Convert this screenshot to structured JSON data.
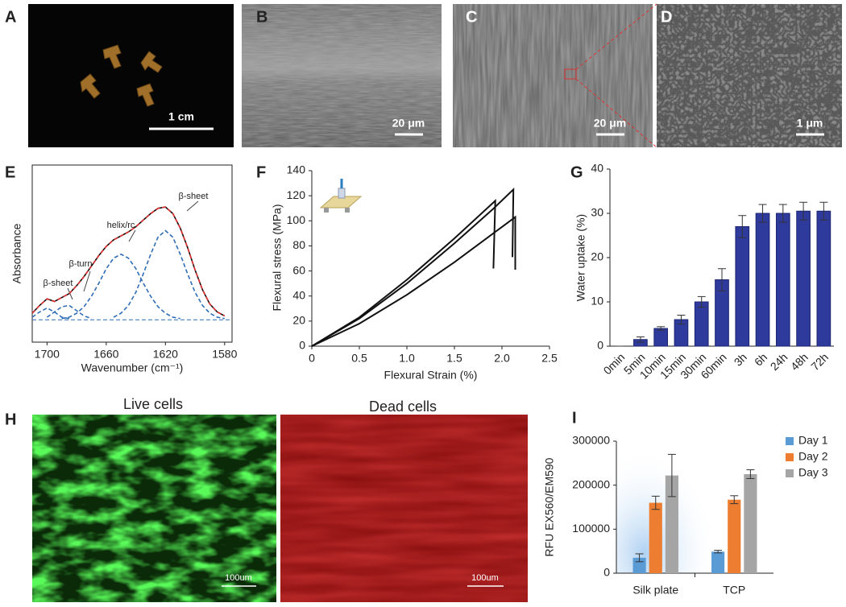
{
  "images": [
    {
      "letter": "A",
      "scale_bar": "1 cm"
    },
    {
      "letter": "B",
      "scale_bar": "20 μm"
    },
    {
      "letter": "C",
      "scale_bar": "20 μm"
    },
    {
      "letter": "D",
      "scale_bar": "1 μm"
    }
  ],
  "cell_images": {
    "letter": "H",
    "panels": [
      {
        "title": "Live cells",
        "scale_bar": "100um"
      },
      {
        "title": "Dead cells",
        "scale_bar": "100um"
      }
    ]
  },
  "chart_data": [
    {
      "type": "line",
      "panel": "E",
      "x_label": "Wavenumber (cm⁻¹)",
      "y_label": "Absorbance",
      "annotations": [
        "β-sheet",
        "β-turn",
        "helix/rc",
        "β-sheet"
      ],
      "xlim": [
        1710,
        1575
      ],
      "ylim": [
        -0.17,
        1.18
      ],
      "xticks": [
        1700,
        1660,
        1620,
        1580
      ],
      "x": [
        1710,
        1705,
        1700,
        1695,
        1690,
        1685,
        1680,
        1675,
        1670,
        1665,
        1660,
        1655,
        1650,
        1645,
        1640,
        1635,
        1630,
        1625,
        1620,
        1615,
        1610,
        1605,
        1600,
        1595,
        1590,
        1585,
        1580
      ],
      "series": [
        {
          "color": "#111111",
          "values": [
            0.05,
            0.11,
            0.16,
            0.14,
            0.17,
            0.2,
            0.26,
            0.33,
            0.41,
            0.49,
            0.56,
            0.61,
            0.64,
            0.67,
            0.71,
            0.76,
            0.81,
            0.85,
            0.86,
            0.81,
            0.7,
            0.55,
            0.38,
            0.23,
            0.12,
            0.06,
            0.03
          ]
        },
        {
          "color": "#e03030",
          "dash": true,
          "values": [
            0.05,
            0.11,
            0.16,
            0.14,
            0.17,
            0.2,
            0.26,
            0.33,
            0.41,
            0.49,
            0.56,
            0.61,
            0.64,
            0.67,
            0.71,
            0.76,
            0.81,
            0.85,
            0.86,
            0.81,
            0.7,
            0.55,
            0.38,
            0.23,
            0.12,
            0.06,
            0.03
          ]
        },
        {
          "color": "#2f6db5",
          "dash": true,
          "values": [
            0.02,
            0.06,
            0.09,
            0.06,
            0.02,
            0.01,
            null,
            null,
            null,
            null,
            null,
            null,
            null,
            null,
            null,
            null,
            null,
            null,
            null,
            null,
            null,
            null,
            null,
            null,
            null,
            null,
            null
          ]
        },
        {
          "color": "#2f6db5",
          "dash": true,
          "values": [
            null,
            null,
            0.02,
            0.06,
            0.1,
            0.11,
            0.07,
            0.03,
            0.01,
            null,
            null,
            null,
            null,
            null,
            null,
            null,
            null,
            null,
            null,
            null,
            null,
            null,
            null,
            null,
            null,
            null,
            null
          ]
        },
        {
          "color": "#2f6db5",
          "dash": true,
          "values": [
            null,
            null,
            null,
            null,
            0.01,
            0.02,
            0.05,
            0.1,
            0.18,
            0.28,
            0.39,
            0.47,
            0.5,
            0.47,
            0.39,
            0.28,
            0.18,
            0.1,
            0.05,
            0.02,
            0.01,
            null,
            null,
            null,
            null,
            null,
            null
          ]
        },
        {
          "color": "#2f6db5",
          "dash": true,
          "values": [
            null,
            null,
            null,
            null,
            null,
            null,
            null,
            null,
            null,
            null,
            null,
            0.02,
            0.05,
            0.11,
            0.21,
            0.35,
            0.5,
            0.63,
            0.68,
            0.63,
            0.5,
            0.35,
            0.21,
            0.11,
            0.05,
            0.02,
            0.01
          ]
        }
      ]
    },
    {
      "type": "line",
      "panel": "F",
      "x_label": "Flexural Strain (%)",
      "y_label": "Flexural stress (MPa)",
      "xlim": [
        0,
        2.5
      ],
      "ylim": [
        0,
        140
      ],
      "xticks": [
        0,
        0.5,
        {
          "value": 1,
          "label": "1.0"
        },
        1.5,
        {
          "value": 2,
          "label": "2.0"
        },
        2.5
      ],
      "yticks": [
        0,
        20,
        40,
        60,
        80,
        100,
        120,
        140
      ],
      "series": [
        {
          "color": "#111111",
          "x": [
            0,
            0.5,
            1.0,
            1.5,
            1.93,
            1.91
          ],
          "values": [
            0,
            23,
            53,
            86,
            116,
            62
          ]
        },
        {
          "color": "#111111",
          "x": [
            0,
            0.5,
            1.0,
            1.5,
            1.9,
            2.12,
            2.11
          ],
          "values": [
            0,
            22,
            50,
            82,
            109,
            125,
            71
          ]
        },
        {
          "color": "#111111",
          "x": [
            0,
            0.5,
            1.0,
            1.5,
            2.14,
            2.14
          ],
          "values": [
            0,
            18,
            41,
            67,
            103,
            61
          ]
        }
      ]
    },
    {
      "type": "bar",
      "panel": "G",
      "y_label": "Water uptake (%)",
      "color": "#2e3a9c",
      "categories": [
        "0min",
        "5min",
        "10min",
        "15min",
        "30min",
        "60min",
        "3h",
        "6h",
        "24h",
        "48h",
        "72h"
      ],
      "values": [
        0,
        1.5,
        4,
        6,
        10,
        15,
        27,
        30,
        30,
        30.5,
        30.5
      ],
      "errors": [
        0,
        0.6,
        0.4,
        1,
        1.2,
        2.5,
        2.5,
        2,
        2,
        2,
        2
      ],
      "ylim": [
        0,
        40
      ],
      "yticks": [
        0,
        10,
        20,
        30,
        40
      ]
    },
    {
      "type": "bar",
      "panel": "I",
      "y_label": "RFU EX560/EM590",
      "legend": "right",
      "categories": [
        "Silk plate",
        "TCP"
      ],
      "series": [
        {
          "name": "Day 1",
          "color": "#5b9bd5",
          "values": [
            35000,
            49000
          ],
          "errors": [
            9000,
            3000
          ]
        },
        {
          "name": "Day 2",
          "color": "#ed7d31",
          "values": [
            160000,
            167000
          ],
          "errors": [
            15000,
            9000
          ]
        },
        {
          "name": "Day 3",
          "color": "#a5a5a5",
          "values": [
            222000,
            225000
          ],
          "errors": [
            48000,
            10000
          ]
        }
      ],
      "ylim": [
        0,
        300000
      ],
      "yticks": [
        0,
        100000,
        200000,
        300000
      ]
    }
  ]
}
